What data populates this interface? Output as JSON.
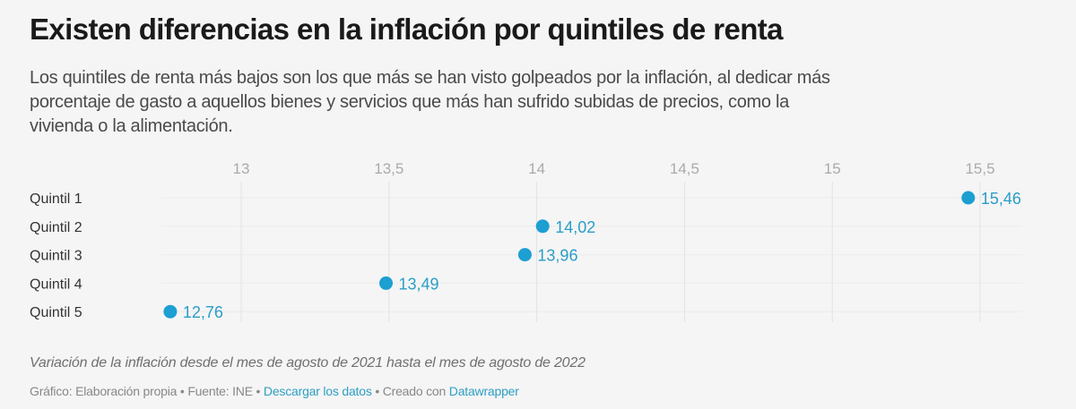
{
  "title": "Existen diferencias en la inflación por quintiles de renta",
  "subtitle_lines": [
    "Los quintiles de renta más bajos son los que más se han visto golpeados por la inflación, al dedicar más",
    "porcentaje de gasto a aquellos bienes y servicios que más han sufrido subidas de precios, como la",
    "vivienda o la alimentación."
  ],
  "note": "Variación de la inflación desde el mes de agosto de 2021 hasta el mes de agosto de 2022",
  "footer": {
    "source_text": "Gráfico: Elaboración propia • Fuente: INE • ",
    "download_link": "Descargar los datos",
    "created_text": " • Creado con ",
    "datawrapper_link": "Datawrapper"
  },
  "chart_data": {
    "type": "scatter",
    "categories": [
      "Quintil 1",
      "Quintil 2",
      "Quintil 3",
      "Quintil 4",
      "Quintil 5"
    ],
    "values": [
      15.46,
      14.02,
      13.96,
      13.49,
      12.76
    ],
    "value_labels": [
      "15,46",
      "14,02",
      "13,96",
      "13,49",
      "12,76"
    ],
    "x_ticks": [
      13,
      13.5,
      14,
      14.5,
      15,
      15.5
    ],
    "x_tick_labels": [
      "13",
      "13,5",
      "14",
      "14,5",
      "15",
      "15,5"
    ],
    "xlim": [
      12.73,
      15.64
    ],
    "grid": true,
    "axis_position": "top",
    "colors": {
      "dot": "#1d9fd2",
      "label": "#2a9ec8",
      "grid": "#e2e2e2",
      "tick": "#aaaaaa",
      "category": "#333333"
    }
  }
}
